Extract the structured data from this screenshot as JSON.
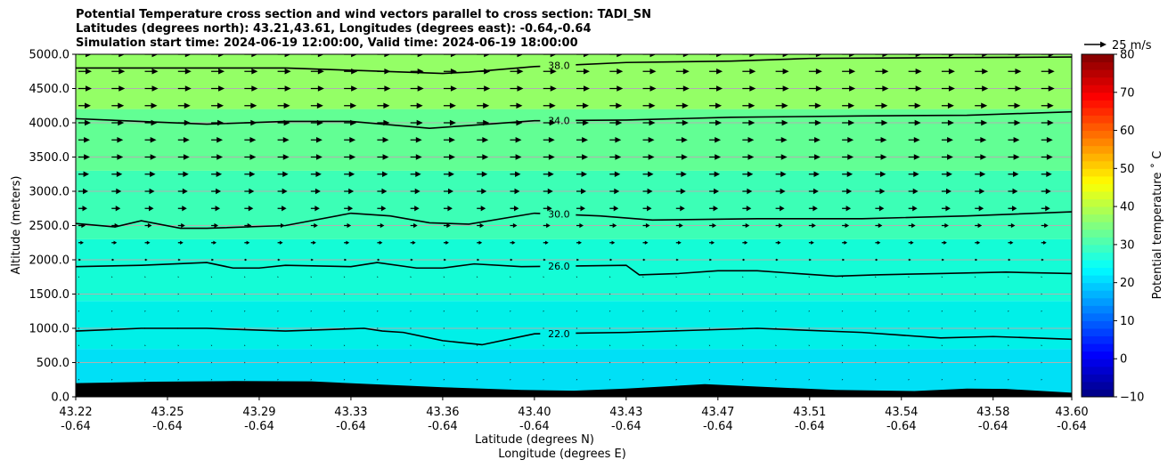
{
  "titles": {
    "line1": "Potential Temperature cross section and wind vectors parallel to cross section: TADI_SN",
    "line2": "Latitudes (degrees north): 43.21,43.61, Longitudes (degrees east): -0.64,-0.64",
    "line3": "Simulation start time: 2024-06-19 12:00:00, Valid time: 2024-06-19 18:00:00"
  },
  "chart_data": {
    "type": "contour",
    "ylabel": "Altitude (meters)",
    "xlabel": "Latitude (degrees N)",
    "xlabel2": "Longitude (degrees E)",
    "ylim": [
      0,
      5000
    ],
    "yticks": [
      "0.0",
      "500.0",
      "1000.0",
      "1500.0",
      "2000.0",
      "2500.0",
      "3000.0",
      "3500.0",
      "4000.0",
      "4500.0",
      "5000.0"
    ],
    "xlim": [
      43.22,
      43.6
    ],
    "xticks": [
      {
        "lat": 43.22,
        "lat_label": "43.22",
        "lon_label": "-0.64"
      },
      {
        "lat": 43.255,
        "lat_label": "43.25",
        "lon_label": "-0.64"
      },
      {
        "lat": 43.29,
        "lat_label": "43.29",
        "lon_label": "-0.64"
      },
      {
        "lat": 43.325,
        "lat_label": "43.33",
        "lon_label": "-0.64"
      },
      {
        "lat": 43.36,
        "lat_label": "43.36",
        "lon_label": "-0.64"
      },
      {
        "lat": 43.395,
        "lat_label": "43.40",
        "lon_label": "-0.64"
      },
      {
        "lat": 43.43,
        "lat_label": "43.43",
        "lon_label": "-0.64"
      },
      {
        "lat": 43.465,
        "lat_label": "43.47",
        "lon_label": "-0.64"
      },
      {
        "lat": 43.5,
        "lat_label": "43.51",
        "lon_label": "-0.64"
      },
      {
        "lat": 43.535,
        "lat_label": "43.54",
        "lon_label": "-0.64"
      },
      {
        "lat": 43.57,
        "lat_label": "43.58",
        "lon_label": "-0.64"
      },
      {
        "lat": 43.6,
        "lat_label": "43.60",
        "lon_label": "-0.64"
      }
    ],
    "colorbar": {
      "label": "Potential temperature ˚ C",
      "range": [
        -10,
        80
      ],
      "ticks": [
        "−10",
        "0",
        "10",
        "20",
        "30",
        "40",
        "50",
        "60",
        "70",
        "80"
      ]
    },
    "quiver_key": {
      "label": "25 m/s",
      "speed": 25
    },
    "temperature_bands": [
      {
        "z0": 0,
        "z1": 700,
        "color": "#00e0f6"
      },
      {
        "z0": 700,
        "z1": 1400,
        "color": "#00f0e8"
      },
      {
        "z0": 1400,
        "z1": 2300,
        "color": "#14fcd6"
      },
      {
        "z0": 2300,
        "z1": 3300,
        "color": "#3cffb6"
      },
      {
        "z0": 3300,
        "z1": 4200,
        "color": "#62ff94"
      },
      {
        "z0": 4200,
        "z1": 5000,
        "color": "#94ff66"
      }
    ],
    "contours": [
      {
        "label": "22.0",
        "label_lat": 43.404,
        "lat": [
          43.22,
          43.245,
          43.27,
          43.3,
          43.33,
          43.337,
          43.345,
          43.36,
          43.375,
          43.395,
          43.43,
          43.48,
          43.52,
          43.55,
          43.57,
          43.6
        ],
        "z": [
          960,
          1000,
          1000,
          960,
          1000,
          960,
          940,
          820,
          760,
          920,
          940,
          1000,
          940,
          860,
          880,
          840
        ]
      },
      {
        "label": "26.0",
        "label_lat": 43.404,
        "lat": [
          43.22,
          43.245,
          43.27,
          43.28,
          43.29,
          43.3,
          43.325,
          43.335,
          43.35,
          43.36,
          43.372,
          43.39,
          43.43,
          43.435,
          43.45,
          43.465,
          43.48,
          43.51,
          43.525,
          43.55,
          43.575,
          43.6
        ],
        "z": [
          1900,
          1920,
          1960,
          1880,
          1880,
          1920,
          1900,
          1960,
          1880,
          1880,
          1940,
          1900,
          1920,
          1780,
          1800,
          1840,
          1840,
          1760,
          1780,
          1800,
          1820,
          1800
        ]
      },
      {
        "label": "30.0",
        "label_lat": 43.404,
        "lat": [
          43.22,
          43.235,
          43.245,
          43.26,
          43.27,
          43.3,
          43.325,
          43.34,
          43.355,
          43.37,
          43.395,
          43.42,
          43.44,
          43.48,
          43.52,
          43.56,
          43.6
        ],
        "z": [
          2530,
          2480,
          2570,
          2460,
          2460,
          2500,
          2680,
          2640,
          2540,
          2520,
          2680,
          2640,
          2580,
          2600,
          2600,
          2640,
          2700
        ]
      },
      {
        "label": "34.0",
        "label_lat": 43.404,
        "lat": [
          43.22,
          43.27,
          43.3,
          43.325,
          43.355,
          43.37,
          43.395,
          43.43,
          43.47,
          43.52,
          43.56,
          43.6
        ],
        "z": [
          4060,
          3980,
          4020,
          4020,
          3920,
          3960,
          4030,
          4040,
          4080,
          4100,
          4110,
          4160
        ]
      },
      {
        "label": "38.0",
        "label_lat": 43.404,
        "lat": [
          43.22,
          43.27,
          43.3,
          43.33,
          43.36,
          43.37,
          43.395,
          43.43,
          43.47,
          43.5,
          43.55,
          43.6
        ],
        "z": [
          4800,
          4800,
          4800,
          4760,
          4720,
          4740,
          4820,
          4880,
          4900,
          4940,
          4950,
          4960
        ]
      }
    ],
    "terrain": {
      "lat": [
        43.22,
        43.25,
        43.28,
        43.31,
        43.33,
        43.36,
        43.39,
        43.41,
        43.43,
        43.46,
        43.48,
        43.51,
        43.54,
        43.56,
        43.575,
        43.6
      ],
      "z": [
        200,
        220,
        230,
        225,
        190,
        140,
        100,
        90,
        120,
        185,
        150,
        100,
        85,
        120,
        115,
        60
      ]
    },
    "wind_levels": [
      {
        "z": 250,
        "speed": 0.6
      },
      {
        "z": 500,
        "speed": 0.4
      },
      {
        "z": 750,
        "speed": 0.4
      },
      {
        "z": 1000,
        "speed": 0.4
      },
      {
        "z": 1250,
        "speed": 0.3
      },
      {
        "z": 1500,
        "speed": 0.3
      },
      {
        "z": 1750,
        "speed": 0.4
      },
      {
        "z": 2000,
        "speed": 3
      },
      {
        "z": 2250,
        "speed": 6
      },
      {
        "z": 2500,
        "speed": 8
      },
      {
        "z": 2750,
        "speed": 10
      },
      {
        "z": 3000,
        "speed": 11
      },
      {
        "z": 3250,
        "speed": 12
      },
      {
        "z": 3500,
        "speed": 13
      },
      {
        "z": 3750,
        "speed": 13
      },
      {
        "z": 4000,
        "speed": 14
      },
      {
        "z": 4250,
        "speed": 14
      },
      {
        "z": 4500,
        "speed": 15
      },
      {
        "z": 4750,
        "speed": 15
      },
      {
        "z": 5000,
        "speed": 15
      }
    ],
    "wind_columns": 30
  }
}
